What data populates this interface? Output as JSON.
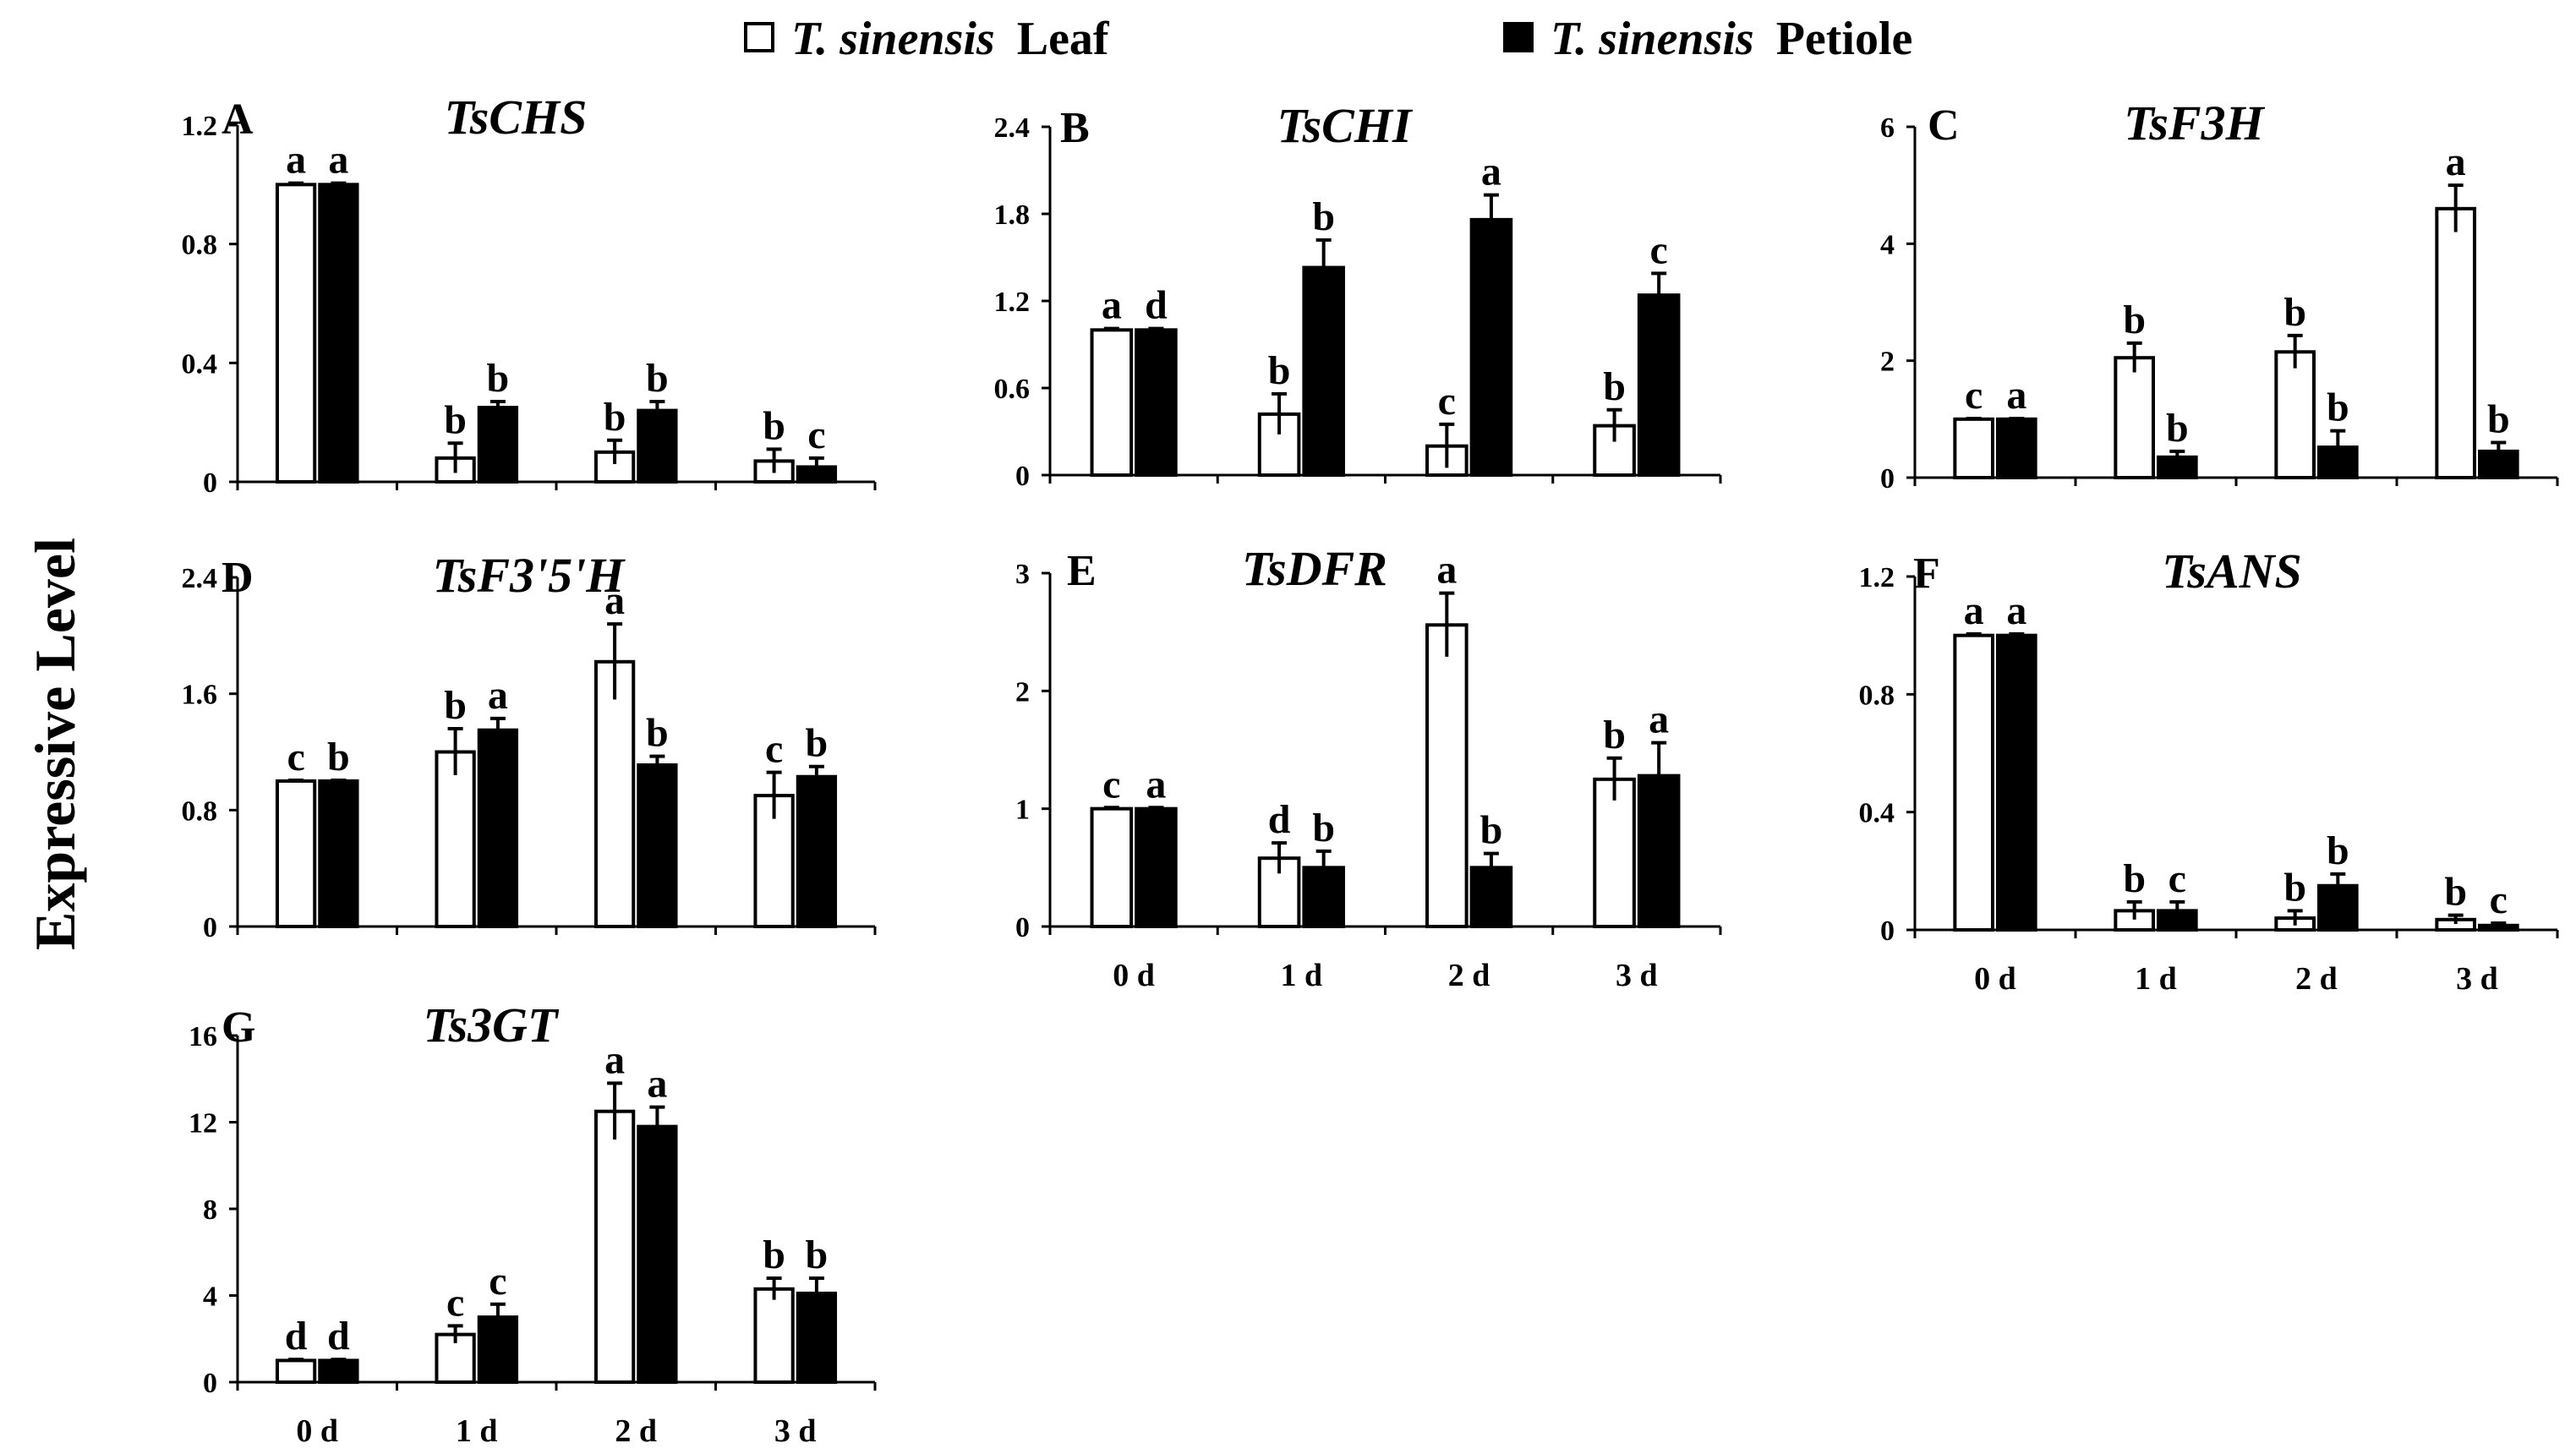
{
  "legend": {
    "leaf": {
      "italic": "T. sinensis",
      "rest": "Leaf"
    },
    "petiole": {
      "italic": "T. sinensis",
      "rest": "Petiole"
    }
  },
  "y_axis_label": "Expressive Level",
  "x_categories": [
    "0 d",
    "1 d",
    "2 d",
    "3 d"
  ],
  "colors": {
    "leaf": "#ffffff",
    "petiole": "#000000",
    "axis": "#000000"
  },
  "chart_data": [
    {
      "type": "bar",
      "letter": "A",
      "title": "TsCHS",
      "categories": [
        "0 d",
        "1 d",
        "2 d",
        "3 d"
      ],
      "ylim": [
        0,
        1.2
      ],
      "yticks": [
        0,
        0.4,
        0.8,
        1.2
      ],
      "ytick_labels": [
        "0",
        "0.4",
        "0.8",
        "1.2"
      ],
      "show_xlabels": false,
      "series": [
        {
          "name": "T. sinensis Leaf",
          "values": [
            1.0,
            0.08,
            0.1,
            0.07
          ],
          "errors": [
            0.005,
            0.05,
            0.04,
            0.04
          ],
          "sig": [
            "a",
            "b",
            "b",
            "b"
          ]
        },
        {
          "name": "T. sinensis Petiole",
          "values": [
            1.0,
            0.25,
            0.24,
            0.05
          ],
          "errors": [
            0.005,
            0.02,
            0.03,
            0.03
          ],
          "sig": [
            "a",
            "b",
            "b",
            "c"
          ]
        }
      ]
    },
    {
      "type": "bar",
      "letter": "B",
      "title": "TsCHI",
      "categories": [
        "0 d",
        "1 d",
        "2 d",
        "3 d"
      ],
      "ylim": [
        0,
        2.4
      ],
      "yticks": [
        0,
        0.6,
        1.2,
        1.8,
        2.4
      ],
      "ytick_labels": [
        "0",
        "0.6",
        "1.2",
        "1.8",
        "2.4"
      ],
      "show_xlabels": false,
      "series": [
        {
          "name": "T. sinensis Leaf",
          "values": [
            1.0,
            0.42,
            0.2,
            0.34
          ],
          "errors": [
            0.01,
            0.14,
            0.15,
            0.11
          ],
          "sig": [
            "a",
            "b",
            "c",
            "b"
          ]
        },
        {
          "name": "T. sinensis Petiole",
          "values": [
            1.0,
            1.43,
            1.76,
            1.24
          ],
          "errors": [
            0.01,
            0.19,
            0.17,
            0.15
          ],
          "sig": [
            "d",
            "b",
            "a",
            "c"
          ]
        }
      ]
    },
    {
      "type": "bar",
      "letter": "C",
      "title": "TsF3H",
      "categories": [
        "0 d",
        "1 d",
        "2 d",
        "3 d"
      ],
      "ylim": [
        0,
        6
      ],
      "yticks": [
        0,
        2,
        4,
        6
      ],
      "ytick_labels": [
        "0",
        "2",
        "4",
        "6"
      ],
      "show_xlabels": false,
      "series": [
        {
          "name": "T. sinensis Leaf",
          "values": [
            1.0,
            2.05,
            2.15,
            4.6
          ],
          "errors": [
            0.01,
            0.25,
            0.28,
            0.4
          ],
          "sig": [
            "c",
            "b",
            "b",
            "a"
          ]
        },
        {
          "name": "T. sinensis Petiole",
          "values": [
            1.0,
            0.35,
            0.52,
            0.45
          ],
          "errors": [
            0.01,
            0.1,
            0.28,
            0.15
          ],
          "sig": [
            "a",
            "b",
            "b",
            "b"
          ]
        }
      ]
    },
    {
      "type": "bar",
      "letter": "D",
      "title": "TsF3'5'H",
      "categories": [
        "0 d",
        "1 d",
        "2 d",
        "3 d"
      ],
      "ylim": [
        0,
        2.4
      ],
      "yticks": [
        0,
        0.8,
        1.6,
        2.4
      ],
      "ytick_labels": [
        "0",
        "0.8",
        "1.6",
        "2.4"
      ],
      "show_xlabels": false,
      "series": [
        {
          "name": "T. sinensis Leaf",
          "values": [
            1.0,
            1.2,
            1.82,
            0.9
          ],
          "errors": [
            0.005,
            0.16,
            0.26,
            0.16
          ],
          "sig": [
            "c",
            "b",
            "a",
            "c"
          ]
        },
        {
          "name": "T. sinensis Petiole",
          "values": [
            1.0,
            1.35,
            1.11,
            1.03
          ],
          "errors": [
            0.005,
            0.08,
            0.06,
            0.07
          ],
          "sig": [
            "b",
            "a",
            "b",
            "b"
          ]
        }
      ]
    },
    {
      "type": "bar",
      "letter": "E",
      "title": "TsDFR",
      "categories": [
        "0 d",
        "1 d",
        "2 d",
        "3 d"
      ],
      "ylim": [
        0,
        3
      ],
      "yticks": [
        0,
        1,
        2,
        3
      ],
      "ytick_labels": [
        "0",
        "1",
        "2",
        "3"
      ],
      "show_xlabels": true,
      "series": [
        {
          "name": "T. sinensis Leaf",
          "values": [
            1.0,
            0.58,
            2.56,
            1.25
          ],
          "errors": [
            0.01,
            0.13,
            0.27,
            0.18
          ],
          "sig": [
            "c",
            "d",
            "a",
            "b"
          ]
        },
        {
          "name": "T. sinensis Petiole",
          "values": [
            1.0,
            0.5,
            0.5,
            1.28
          ],
          "errors": [
            0.01,
            0.14,
            0.12,
            0.28
          ],
          "sig": [
            "a",
            "b",
            "b",
            "a"
          ]
        }
      ]
    },
    {
      "type": "bar",
      "letter": "F",
      "title": "TsANS",
      "categories": [
        "0 d",
        "1 d",
        "2 d",
        "3 d"
      ],
      "ylim": [
        0,
        1.2
      ],
      "yticks": [
        0,
        0.4,
        0.8,
        1.2
      ],
      "ytick_labels": [
        "0",
        "0.4",
        "0.8",
        "1.2"
      ],
      "show_xlabels": true,
      "series": [
        {
          "name": "T. sinensis Leaf",
          "values": [
            1.0,
            0.065,
            0.04,
            0.035
          ],
          "errors": [
            0.005,
            0.03,
            0.025,
            0.015
          ],
          "sig": [
            "a",
            "b",
            "b",
            "b"
          ]
        },
        {
          "name": "T. sinensis Petiole",
          "values": [
            1.0,
            0.065,
            0.15,
            0.015
          ],
          "errors": [
            0.005,
            0.03,
            0.04,
            0.008
          ],
          "sig": [
            "a",
            "c",
            "b",
            "c"
          ]
        }
      ]
    },
    {
      "type": "bar",
      "letter": "G",
      "title": "Ts3GT",
      "categories": [
        "0 d",
        "1 d",
        "2 d",
        "3 d"
      ],
      "ylim": [
        0,
        16
      ],
      "yticks": [
        0,
        4,
        8,
        12,
        16
      ],
      "ytick_labels": [
        "0",
        "4",
        "8",
        "12",
        "16"
      ],
      "show_xlabels": true,
      "series": [
        {
          "name": "T. sinensis Leaf",
          "values": [
            1.0,
            2.2,
            12.5,
            4.3
          ],
          "errors": [
            0.05,
            0.4,
            1.3,
            0.5
          ],
          "sig": [
            "d",
            "c",
            "a",
            "b"
          ]
        },
        {
          "name": "T. sinensis Petiole",
          "values": [
            1.0,
            3.0,
            11.8,
            4.1
          ],
          "errors": [
            0.05,
            0.6,
            0.9,
            0.7
          ],
          "sig": [
            "d",
            "c",
            "a",
            "b"
          ]
        }
      ]
    }
  ]
}
